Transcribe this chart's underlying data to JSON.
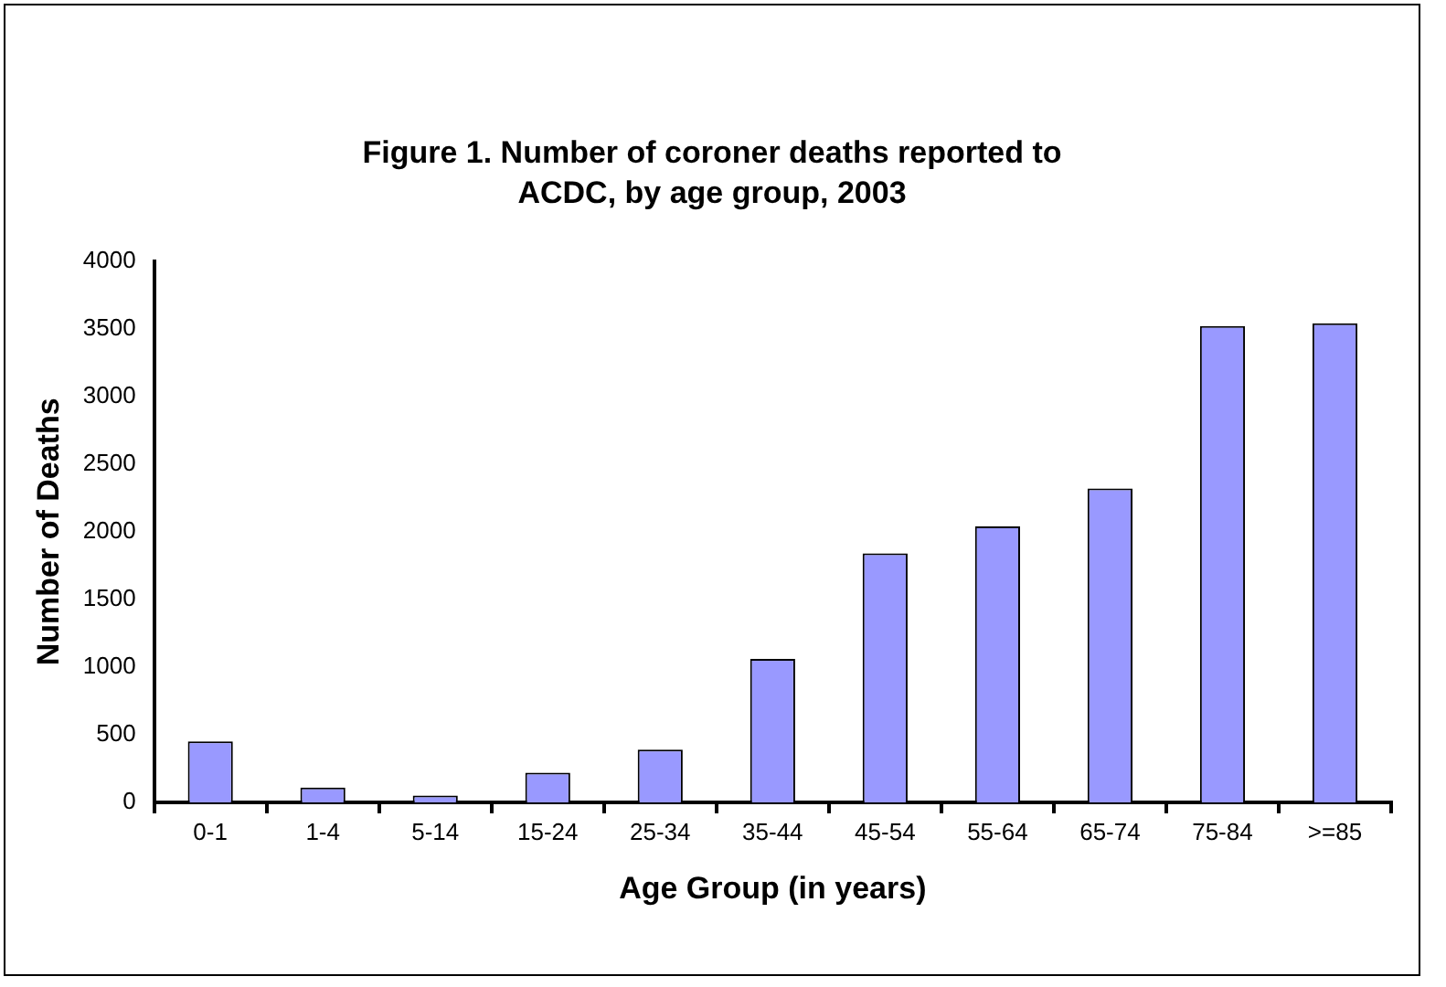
{
  "chart_data": {
    "type": "bar",
    "title": "Figure 1. Number of coroner deaths reported to ACDC, by age group, 2003",
    "xlabel": "Age Group (in years)",
    "ylabel": "Number of Deaths",
    "categories": [
      "0-1",
      "1-4",
      "5-14",
      "15-24",
      "25-34",
      "35-44",
      "45-54",
      "55-64",
      "65-74",
      "75-84",
      ">=85"
    ],
    "values": [
      450,
      110,
      50,
      220,
      390,
      1060,
      1840,
      2040,
      2320,
      3520,
      3540
    ],
    "color": "#9999ff",
    "ylim": [
      0,
      4000
    ],
    "yticks": [
      0,
      500,
      1000,
      1500,
      2000,
      2500,
      3000,
      3500,
      4000
    ],
    "grid": false,
    "legend": false
  }
}
